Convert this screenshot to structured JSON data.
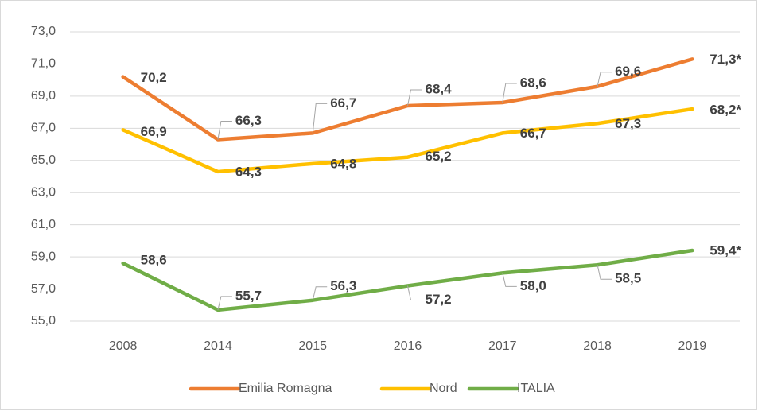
{
  "chart_data": {
    "type": "line",
    "categories": [
      "2008",
      "2014",
      "2015",
      "2016",
      "2017",
      "2018",
      "2019"
    ],
    "series": [
      {
        "name": "Emilia Romagna",
        "color": "#ED7D31",
        "values": [
          70.2,
          66.3,
          66.7,
          68.4,
          68.6,
          69.6,
          71.3
        ],
        "value_labels": [
          "70,2",
          "66,3",
          "66,7",
          "68,4",
          "68,6",
          "69,6",
          "71,3*"
        ]
      },
      {
        "name": "Nord",
        "color": "#FFC000",
        "values": [
          66.9,
          64.3,
          64.8,
          65.2,
          66.7,
          67.3,
          68.2
        ],
        "value_labels": [
          "66,9",
          "64,3",
          "64,8",
          "65,2",
          "66,7",
          "67,3",
          "68,2*"
        ]
      },
      {
        "name": "ITALIA",
        "color": "#70AD47",
        "values": [
          58.6,
          55.7,
          56.3,
          57.2,
          58.0,
          58.5,
          59.4
        ],
        "value_labels": [
          "58,6",
          "55,7",
          "56,3",
          "57,2",
          "58,0",
          "58,5",
          "59,4*"
        ]
      }
    ],
    "ylim": [
      55,
      73
    ],
    "yticks": [
      {
        "value": 55,
        "label": "55,0"
      },
      {
        "value": 57,
        "label": "57,0"
      },
      {
        "value": 59,
        "label": "59,0"
      },
      {
        "value": 61,
        "label": "61,0"
      },
      {
        "value": 63,
        "label": "63,0"
      },
      {
        "value": 65,
        "label": "65,0"
      },
      {
        "value": 67,
        "label": "67,0"
      },
      {
        "value": 69,
        "label": "69,0"
      },
      {
        "value": 71,
        "label": "71,0"
      },
      {
        "value": 73,
        "label": "73,0"
      }
    ],
    "grid": true,
    "legend": "bottom"
  }
}
